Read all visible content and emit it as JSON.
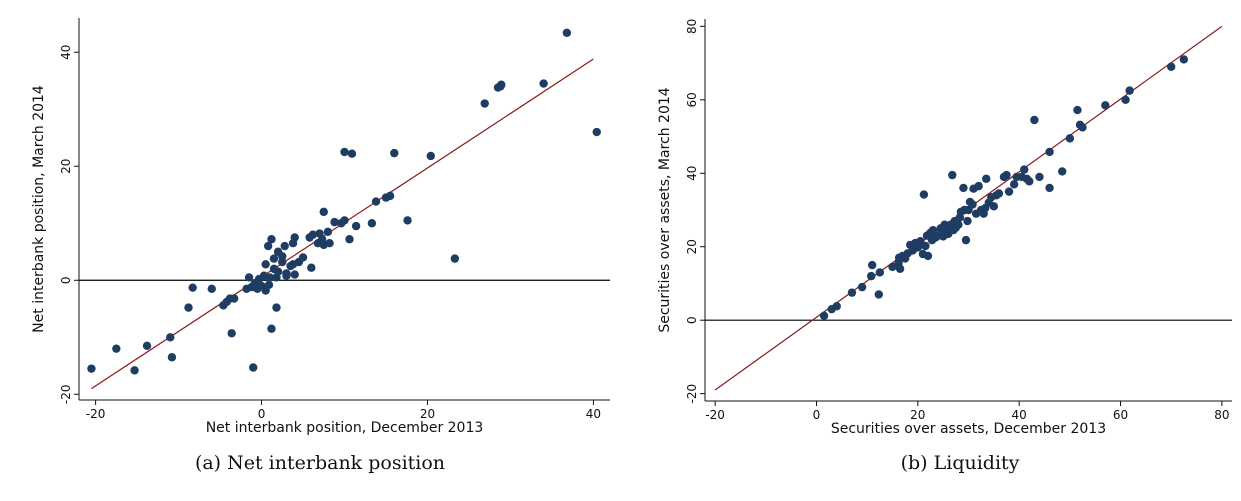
{
  "chart_data": [
    {
      "type": "scatter",
      "caption": "(a)  Net interbank position",
      "xlabel": "Net interbank position, December 2013",
      "ylabel": "Net interbank position, March 2014",
      "xlim": [
        -22,
        42
      ],
      "ylim": [
        -21,
        46
      ],
      "xticks": [
        -20,
        0,
        20,
        40
      ],
      "yticks": [
        -20,
        0,
        20,
        40
      ],
      "xtick_labels": [
        "-20",
        "0",
        "20",
        "40"
      ],
      "ytick_labels": [
        "-20",
        "0",
        "20",
        "40"
      ],
      "grid": false,
      "reference_line_y": 0,
      "fit_line": {
        "x": [
          -20.5,
          40
        ],
        "y": [
          -19,
          38.8
        ]
      },
      "point_color": "#1f3d63",
      "fit_color": "#8b1a1a",
      "points": [
        [
          -20.5,
          -15.5
        ],
        [
          -17.5,
          -12
        ],
        [
          -15.3,
          -15.8
        ],
        [
          -13.8,
          -11.5
        ],
        [
          -11,
          -10
        ],
        [
          -10.8,
          -13.5
        ],
        [
          -8.8,
          -4.8
        ],
        [
          -8.3,
          -1.3
        ],
        [
          -6,
          -1.5
        ],
        [
          -4.6,
          -4.4
        ],
        [
          -4.2,
          -3.8
        ],
        [
          -3.8,
          -3.2
        ],
        [
          -3.6,
          -9.3
        ],
        [
          -3.3,
          -3.2
        ],
        [
          -1.8,
          -1.5
        ],
        [
          -1.5,
          0.5
        ],
        [
          -1.2,
          -1.2
        ],
        [
          -1,
          -15.3
        ],
        [
          -0.8,
          -0.5
        ],
        [
          -0.5,
          -1.5
        ],
        [
          -0.3,
          0.2
        ],
        [
          0,
          -1
        ],
        [
          0.3,
          0.8
        ],
        [
          0.5,
          -1.8
        ],
        [
          0.5,
          2.8
        ],
        [
          0.8,
          6
        ],
        [
          0.9,
          -0.8
        ],
        [
          1,
          0.5
        ],
        [
          1.2,
          7.2
        ],
        [
          1.2,
          -8.5
        ],
        [
          1.5,
          2
        ],
        [
          1.5,
          3.8
        ],
        [
          1.8,
          0.5
        ],
        [
          1.8,
          -4.8
        ],
        [
          2,
          1.5
        ],
        [
          2,
          5
        ],
        [
          2.5,
          4.2
        ],
        [
          2.5,
          3.2
        ],
        [
          2.8,
          6
        ],
        [
          3,
          1.2
        ],
        [
          3,
          0.8
        ],
        [
          3.5,
          2.5
        ],
        [
          3.8,
          6.5
        ],
        [
          3.8,
          2.8
        ],
        [
          4,
          7.5
        ],
        [
          4,
          1
        ],
        [
          4.5,
          3.2
        ],
        [
          5,
          4
        ],
        [
          5.8,
          7.5
        ],
        [
          6,
          2.2
        ],
        [
          6.2,
          8
        ],
        [
          6.8,
          6.5
        ],
        [
          7,
          8.2
        ],
        [
          7.3,
          7.2
        ],
        [
          7.5,
          12
        ],
        [
          7.5,
          6.2
        ],
        [
          8,
          8.5
        ],
        [
          8.2,
          6.5
        ],
        [
          8.8,
          10.2
        ],
        [
          9.6,
          10
        ],
        [
          10,
          10.5
        ],
        [
          10,
          22.5
        ],
        [
          10.6,
          7.2
        ],
        [
          10.9,
          22.2
        ],
        [
          11.4,
          9.5
        ],
        [
          13.3,
          10
        ],
        [
          13.8,
          13.8
        ],
        [
          15,
          14.5
        ],
        [
          15.5,
          14.8
        ],
        [
          16,
          22.3
        ],
        [
          17.6,
          10.5
        ],
        [
          20.4,
          21.8
        ],
        [
          23.3,
          3.8
        ],
        [
          26.9,
          31
        ],
        [
          28.5,
          33.8
        ],
        [
          28.8,
          34
        ],
        [
          28.9,
          34.3
        ],
        [
          34,
          34.5
        ],
        [
          36.8,
          43.4
        ],
        [
          40.4,
          26
        ]
      ]
    },
    {
      "type": "scatter",
      "caption": "(b)  Liquidity",
      "xlabel": "Securities over assets, December 2013",
      "ylabel": "Securities over assets, March 2014",
      "xlim": [
        -22,
        82
      ],
      "ylim": [
        -22,
        82
      ],
      "xticks": [
        -20,
        0,
        20,
        40,
        60,
        80
      ],
      "yticks": [
        -20,
        0,
        20,
        40,
        60,
        80
      ],
      "xtick_labels": [
        "-20",
        "0",
        "20",
        "40",
        "60",
        "80"
      ],
      "ytick_labels": [
        "-20",
        "0",
        "20",
        "40",
        "60",
        "80"
      ],
      "grid": false,
      "reference_line_y": 0,
      "fit_line": {
        "x": [
          -20,
          80
        ],
        "y": [
          -19,
          80
        ]
      },
      "point_color": "#1f3d63",
      "fit_color": "#8b1a1a",
      "points": [
        [
          1.5,
          1.2
        ],
        [
          3,
          3
        ],
        [
          4,
          3.8
        ],
        [
          7,
          7.5
        ],
        [
          9,
          9
        ],
        [
          10.8,
          12
        ],
        [
          11,
          15
        ],
        [
          12.3,
          7
        ],
        [
          12.5,
          13
        ],
        [
          15,
          14.5
        ],
        [
          16.2,
          15.5
        ],
        [
          16.3,
          17
        ],
        [
          16.5,
          14
        ],
        [
          17,
          17.5
        ],
        [
          17.5,
          16.8
        ],
        [
          18,
          18.2
        ],
        [
          18.5,
          20.5
        ],
        [
          19,
          19
        ],
        [
          19.5,
          21
        ],
        [
          20,
          19.8
        ],
        [
          20.5,
          21.5
        ],
        [
          21,
          18
        ],
        [
          21.2,
          34.2
        ],
        [
          21.5,
          20.2
        ],
        [
          21.8,
          23
        ],
        [
          22,
          17.5
        ],
        [
          22.5,
          23.8
        ],
        [
          22.8,
          21.8
        ],
        [
          23,
          24.5
        ],
        [
          23.5,
          22.5
        ],
        [
          24,
          23
        ],
        [
          24.5,
          25
        ],
        [
          25,
          22.8
        ],
        [
          25.3,
          26
        ],
        [
          25.5,
          24.5
        ],
        [
          26,
          23.5
        ],
        [
          26.5,
          26
        ],
        [
          26.8,
          39.5
        ],
        [
          27,
          24.5
        ],
        [
          27.3,
          27
        ],
        [
          27.5,
          25.2
        ],
        [
          28,
          26
        ],
        [
          28.3,
          28
        ],
        [
          28.5,
          29.5
        ],
        [
          29,
          36
        ],
        [
          29.2,
          30
        ],
        [
          29.5,
          21.8
        ],
        [
          29.8,
          27
        ],
        [
          30,
          30
        ],
        [
          30.3,
          32.2
        ],
        [
          30.8,
          31.5
        ],
        [
          31,
          35.8
        ],
        [
          31.5,
          29
        ],
        [
          32,
          36.5
        ],
        [
          32.5,
          30
        ],
        [
          33,
          29
        ],
        [
          33.3,
          30.5
        ],
        [
          33.5,
          38.5
        ],
        [
          34,
          32
        ],
        [
          34.5,
          33.5
        ],
        [
          35,
          31
        ],
        [
          35.5,
          34
        ],
        [
          36,
          34.5
        ],
        [
          37,
          39
        ],
        [
          37.5,
          39.5
        ],
        [
          38,
          35
        ],
        [
          39,
          37
        ],
        [
          39.5,
          39
        ],
        [
          40.5,
          39
        ],
        [
          41,
          41
        ],
        [
          41.5,
          38.5
        ],
        [
          42,
          37.8
        ],
        [
          43,
          54.5
        ],
        [
          44,
          39
        ],
        [
          46,
          45.8
        ],
        [
          46,
          36
        ],
        [
          48.5,
          40.5
        ],
        [
          50,
          49.5
        ],
        [
          51.5,
          57.2
        ],
        [
          52,
          53.2
        ],
        [
          52.5,
          52.5
        ],
        [
          57,
          58.5
        ],
        [
          61,
          60
        ],
        [
          61.8,
          62.5
        ],
        [
          70,
          69
        ],
        [
          72.5,
          71
        ]
      ]
    }
  ]
}
